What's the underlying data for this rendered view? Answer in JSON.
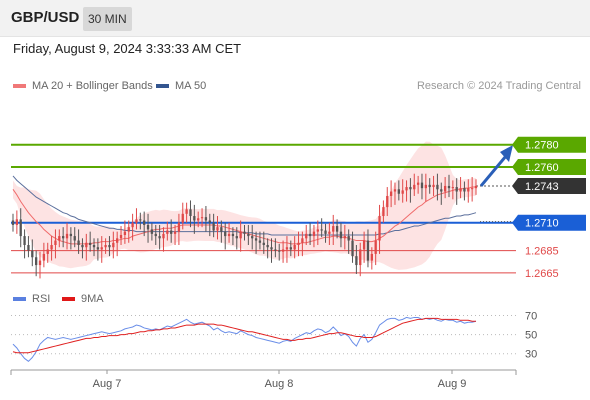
{
  "header": {
    "pair": "GBP/USD",
    "timeframe": "30 MIN"
  },
  "datetime": "Friday, August 9, 2024 3:33:33 AM CET",
  "legend": {
    "ma20_label": "MA 20 + Bollinger Bands",
    "ma50_label": "MA 50",
    "credit": "Research © 2024 Trading Central"
  },
  "colors": {
    "resistance": "#5aa800",
    "pivot": "#1a5fd6",
    "support": "#e04848",
    "current": "#333333",
    "ma20": "#f06a6a",
    "ma50": "#5b6f9c",
    "bollinger_fill": "#fde3e3",
    "arrow": "#2a5fb8",
    "candle_up": "#e04848",
    "candle_down": "#555555",
    "rsi": "#6a8ee8",
    "rsi_ma": "#e02020"
  },
  "indicator_legend": {
    "rsi_label": "RSI",
    "ma_label": "9MA"
  },
  "chart_data": [
    {
      "type": "candlestick",
      "instrument": "GBP/USD",
      "interval": "30 min",
      "ylim": [
        1.2655,
        1.2795
      ],
      "x_ticks": [
        "Aug 7",
        "Aug 8",
        "Aug 9"
      ],
      "levels": [
        {
          "label": "1.2780",
          "value": 1.278,
          "kind": "resistance"
        },
        {
          "label": "1.2760",
          "value": 1.276,
          "kind": "resistance"
        },
        {
          "label": "1.2743",
          "value": 1.2743,
          "kind": "current"
        },
        {
          "label": "1.2710",
          "value": 1.271,
          "kind": "pivot"
        },
        {
          "label": "1.2685",
          "value": 1.2685,
          "kind": "support"
        },
        {
          "label": "1.2665",
          "value": 1.2665,
          "kind": "support"
        }
      ],
      "close_series": [
        1.2708,
        1.2713,
        1.2698,
        1.269,
        1.2685,
        1.2679,
        1.2672,
        1.2676,
        1.2682,
        1.2686,
        1.269,
        1.2694,
        1.2698,
        1.2696,
        1.27,
        1.2698,
        1.2694,
        1.269,
        1.2688,
        1.2692,
        1.269,
        1.2688,
        1.2686,
        1.2688,
        1.269,
        1.2688,
        1.2692,
        1.2696,
        1.2699,
        1.2702,
        1.2706,
        1.271,
        1.2713,
        1.2712,
        1.2708,
        1.2704,
        1.27,
        1.2698,
        1.2696,
        1.27,
        1.2703,
        1.27,
        1.2702,
        1.271,
        1.2718,
        1.2722,
        1.2716,
        1.2712,
        1.2714,
        1.2715,
        1.2712,
        1.271,
        1.2703,
        1.2706,
        1.2702,
        1.2698,
        1.27,
        1.2698,
        1.2696,
        1.2702,
        1.27,
        1.2698,
        1.2696,
        1.2694,
        1.2692,
        1.269,
        1.2688,
        1.2686,
        1.2685,
        1.2684,
        1.2686,
        1.2688,
        1.2686,
        1.269,
        1.2692,
        1.2696,
        1.27,
        1.2698,
        1.2702,
        1.2704,
        1.2703,
        1.27,
        1.2702,
        1.2707,
        1.2702,
        1.2696,
        1.2698,
        1.2694,
        1.268,
        1.2672,
        1.2686,
        1.2694,
        1.2676,
        1.2682,
        1.2694,
        1.2716,
        1.2724,
        1.2734,
        1.2738,
        1.274,
        1.2736,
        1.2739,
        1.2742,
        1.274,
        1.2744,
        1.2746,
        1.2741,
        1.2744,
        1.2742,
        1.2744,
        1.274,
        1.2738,
        1.2743,
        1.2741,
        1.2742,
        1.2738,
        1.2741,
        1.2738,
        1.2741,
        1.2741,
        1.2743
      ],
      "ma20_series": [
        1.274,
        1.2735,
        1.2729,
        1.2724,
        1.2719,
        1.2715,
        1.2711,
        1.2708,
        1.2704,
        1.2701,
        1.2698,
        1.2696,
        1.2694,
        1.2693,
        1.2692,
        1.2691,
        1.2691,
        1.2691,
        1.2691,
        1.2691,
        1.2691,
        1.2692,
        1.2692,
        1.2693,
        1.2693,
        1.2693,
        1.2694,
        1.2694,
        1.2695,
        1.2696,
        1.2696,
        1.2698,
        1.2699,
        1.27,
        1.2701,
        1.2702,
        1.2703,
        1.2704,
        1.2704,
        1.2705,
        1.2705,
        1.2705,
        1.2706,
        1.2707,
        1.2708,
        1.2708,
        1.2708,
        1.2708,
        1.2708,
        1.2708,
        1.2708,
        1.2708,
        1.2708,
        1.2707,
        1.2707,
        1.2706,
        1.2705,
        1.2704,
        1.2703,
        1.2702,
        1.2701,
        1.27,
        1.2699,
        1.2698,
        1.2697,
        1.2696,
        1.2695,
        1.2694,
        1.2693,
        1.2692,
        1.2692,
        1.2692,
        1.2691,
        1.2691,
        1.2691,
        1.2692,
        1.2692,
        1.2693,
        1.2694,
        1.2695,
        1.2696,
        1.2697,
        1.2697,
        1.2698,
        1.2698,
        1.2697,
        1.2697,
        1.2696,
        1.2695,
        1.2694,
        1.2694,
        1.2694,
        1.2693,
        1.2693,
        1.2694,
        1.2696,
        1.2698,
        1.2701,
        1.2704,
        1.2707,
        1.2709,
        1.2712,
        1.2715,
        1.2718,
        1.2721,
        1.2724,
        1.2726,
        1.2729,
        1.2731,
        1.2733,
        1.2735,
        1.2736,
        1.2737,
        1.2738,
        1.2739,
        1.274,
        1.274,
        1.2741,
        1.2741,
        1.2742,
        1.2742
      ],
      "ma50_series": [
        1.2752,
        1.2748,
        1.2745,
        1.2742,
        1.2739,
        1.2736,
        1.2733,
        1.2731,
        1.2729,
        1.2727,
        1.2725,
        1.2723,
        1.2721,
        1.2719,
        1.2718,
        1.2716,
        1.2715,
        1.2713,
        1.2712,
        1.2711,
        1.271,
        1.2709,
        1.2708,
        1.2707,
        1.2706,
        1.2705,
        1.2705,
        1.2704,
        1.2704,
        1.2703,
        1.2703,
        1.2703,
        1.2702,
        1.2702,
        1.2702,
        1.2702,
        1.2702,
        1.2702,
        1.2702,
        1.2702,
        1.2702,
        1.2702,
        1.2702,
        1.2702,
        1.2702,
        1.2702,
        1.2702,
        1.2702,
        1.2702,
        1.2702,
        1.2702,
        1.2702,
        1.2702,
        1.2702,
        1.2702,
        1.2702,
        1.2702,
        1.2702,
        1.2702,
        1.2701,
        1.2701,
        1.2701,
        1.2701,
        1.27,
        1.27,
        1.27,
        1.27,
        1.2699,
        1.2699,
        1.2699,
        1.2699,
        1.2699,
        1.2699,
        1.2699,
        1.2699,
        1.2699,
        1.2699,
        1.2699,
        1.2699,
        1.2699,
        1.2699,
        1.2699,
        1.2699,
        1.2699,
        1.2699,
        1.2699,
        1.2699,
        1.2699,
        1.2699,
        1.2699,
        1.2699,
        1.2699,
        1.2699,
        1.2699,
        1.2699,
        1.27,
        1.27,
        1.2701,
        1.2702,
        1.2703,
        1.2703,
        1.2704,
        1.2705,
        1.2706,
        1.2707,
        1.2707,
        1.2708,
        1.2709,
        1.271,
        1.2711,
        1.2712,
        1.2713,
        1.2714,
        1.2714,
        1.2715,
        1.2716,
        1.2716,
        1.2717,
        1.2717,
        1.2718,
        1.2719
      ],
      "forecast_arrow": {
        "from": 1.2743,
        "to": 1.276
      }
    },
    {
      "type": "line",
      "title": "RSI",
      "y_ticks": [
        70,
        50,
        30
      ],
      "ylim": [
        15,
        80
      ],
      "series": [
        {
          "name": "RSI",
          "values": [
            40,
            36,
            30,
            25,
            22,
            26,
            32,
            40,
            44,
            47,
            46,
            45,
            46,
            47,
            46,
            45,
            46,
            47,
            48,
            49,
            50,
            51,
            52,
            53,
            52,
            51,
            52,
            53,
            54,
            56,
            57,
            58,
            60,
            59,
            57,
            56,
            55,
            56,
            55,
            57,
            59,
            58,
            60,
            62,
            64,
            66,
            63,
            61,
            62,
            63,
            61,
            59,
            55,
            57,
            54,
            52,
            53,
            52,
            51,
            54,
            52,
            50,
            49,
            47,
            46,
            45,
            44,
            43,
            42,
            41,
            43,
            44,
            43,
            46,
            48,
            50,
            52,
            51,
            54,
            56,
            55,
            52,
            54,
            58,
            54,
            49,
            51,
            48,
            42,
            38,
            46,
            50,
            42,
            45,
            52,
            60,
            63,
            66,
            67,
            67,
            65,
            66,
            68,
            67,
            68,
            68,
            66,
            67,
            66,
            67,
            65,
            64,
            66,
            65,
            65,
            63,
            64,
            62,
            63,
            63,
            64
          ]
        },
        {
          "name": "9MA",
          "values": [
            32,
            31,
            31,
            31,
            31,
            32,
            33,
            34,
            35,
            36,
            37,
            38,
            39,
            40,
            41,
            42,
            43,
            44,
            45,
            46,
            46,
            47,
            47,
            48,
            48,
            49,
            49,
            49,
            50,
            50,
            51,
            51,
            52,
            53,
            53,
            54,
            54,
            55,
            55,
            56,
            56,
            57,
            57,
            58,
            59,
            60,
            60,
            60,
            61,
            61,
            61,
            61,
            61,
            60,
            60,
            59,
            58,
            57,
            56,
            55,
            54,
            53,
            53,
            52,
            51,
            50,
            49,
            48,
            47,
            46,
            45,
            45,
            44,
            44,
            45,
            45,
            46,
            46,
            47,
            48,
            49,
            50,
            51,
            51,
            52,
            52,
            51,
            50,
            49,
            48,
            48,
            47,
            47,
            47,
            48,
            50,
            52,
            54,
            56,
            58,
            60,
            62,
            63,
            64,
            65,
            66,
            66,
            67,
            67,
            67,
            67,
            66,
            66,
            66,
            66,
            66,
            65,
            65,
            65,
            64,
            64
          ]
        }
      ]
    }
  ]
}
